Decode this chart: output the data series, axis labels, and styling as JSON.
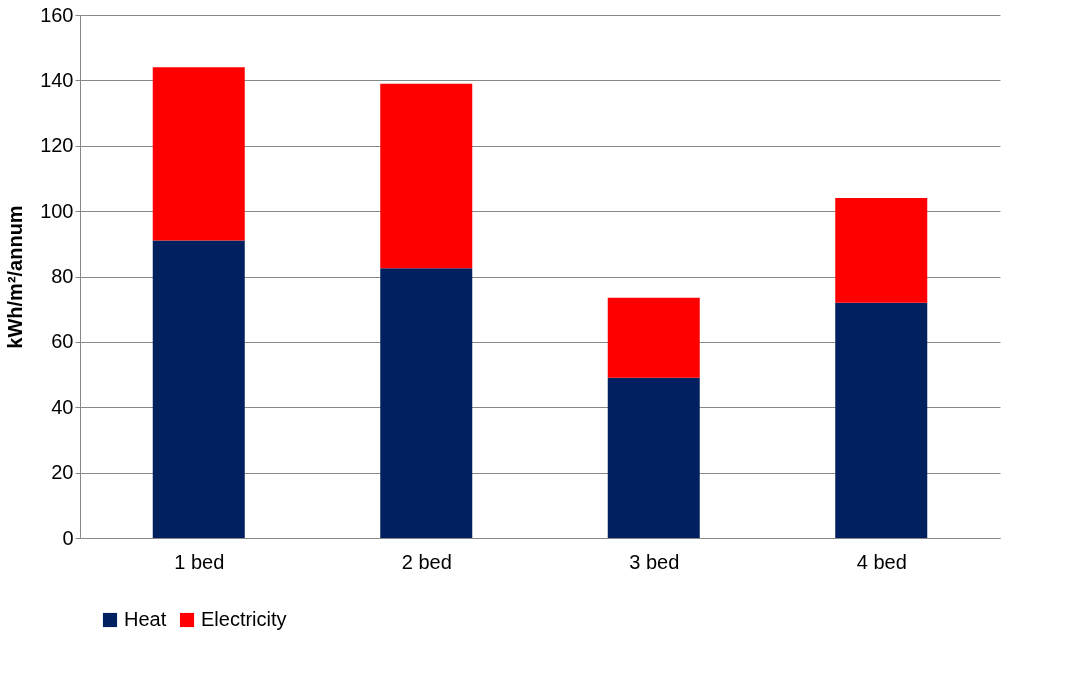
{
  "chart_data": {
    "type": "bar",
    "stacked": true,
    "ylabel": "kWh/m²/annum",
    "categories": [
      "1 bed",
      "2 bed",
      "3 bed",
      "4 bed"
    ],
    "series": [
      {
        "name": "Heat",
        "color": "#002060",
        "values": [
          91,
          82.5,
          49,
          72
        ]
      },
      {
        "name": "Electricity",
        "color": "#ff0000",
        "values": [
          53,
          56.5,
          24.5,
          32
        ]
      }
    ],
    "ylim": [
      0,
      160
    ],
    "yticks": [
      0,
      20,
      40,
      60,
      80,
      100,
      120,
      140,
      160
    ],
    "grid": "y",
    "legend": "bottom"
  }
}
